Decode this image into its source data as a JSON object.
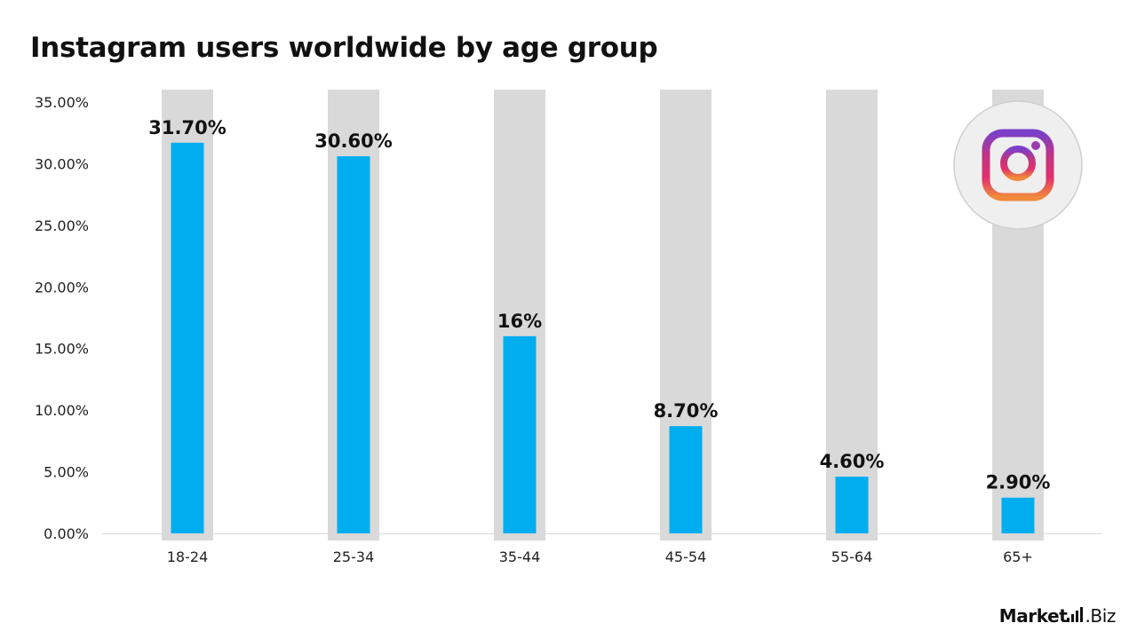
{
  "chart_data": {
    "type": "bar",
    "title": "Instagram users worldwide by age group",
    "categories": [
      "18-24",
      "25-34",
      "35-44",
      "45-54",
      "55-64",
      "65+"
    ],
    "values": [
      31.7,
      30.6,
      16,
      8.7,
      4.6,
      2.9
    ],
    "value_labels": [
      "31.70%",
      "30.60%",
      "16%",
      "8.70%",
      "4.60%",
      "2.90%"
    ],
    "ylim": [
      0,
      35
    ],
    "y_ticks": [
      0,
      5,
      10,
      15,
      20,
      25,
      30,
      35
    ],
    "y_tick_labels": [
      "0.00%",
      "5.00%",
      "10.00%",
      "15.00%",
      "20.00%",
      "25.00%",
      "30.00%",
      "35.00%"
    ],
    "xlabel": "",
    "ylabel": "",
    "grid": false,
    "legend": "none",
    "colors": {
      "bar": "#00aeef",
      "background_column": "#d9d9d9",
      "axis": "#d9d9d9"
    }
  },
  "logo": {
    "icon": "instagram-icon"
  },
  "brand": {
    "name_bold": "Market",
    "name_rest": ".Biz"
  }
}
